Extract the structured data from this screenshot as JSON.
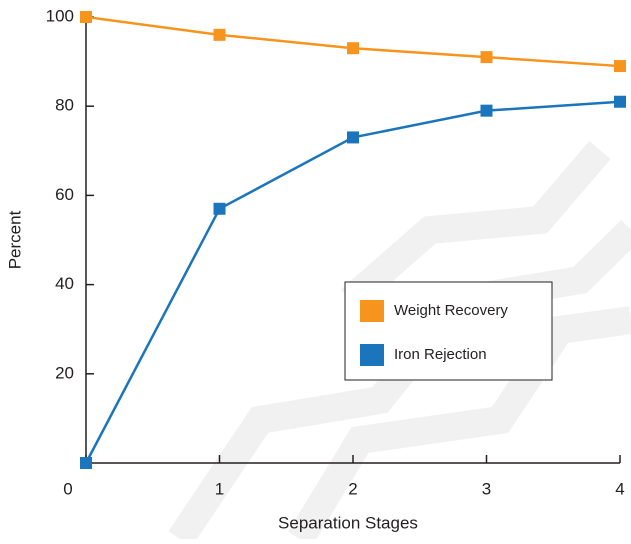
{
  "chart_data": {
    "type": "line",
    "x_label": "Separation Stages",
    "y_label": "Percent",
    "x": [
      0,
      1,
      2,
      3,
      4
    ],
    "xlim": [
      0,
      4
    ],
    "xticks": [
      0,
      1,
      2,
      3,
      4
    ],
    "ylim": [
      0,
      100
    ],
    "yticks": [
      20,
      40,
      60,
      80,
      100
    ],
    "series": [
      {
        "name": "Weight Recovery",
        "color": "#f7941d",
        "values": [
          100,
          96,
          93,
          91,
          89
        ]
      },
      {
        "name": "Iron Rejection",
        "color": "#1a75bc",
        "values": [
          0,
          57,
          73,
          79,
          81
        ]
      }
    ]
  }
}
